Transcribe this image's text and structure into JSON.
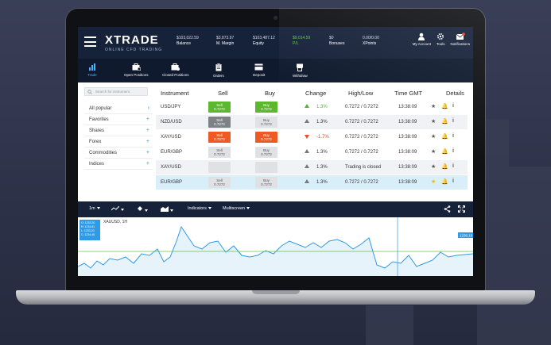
{
  "brand": {
    "name": "XTRADE",
    "tagline": "ONLINE CFD TRADING"
  },
  "header_stats": [
    {
      "value": "$103,022.59",
      "label": "Balance",
      "color": "normal"
    },
    {
      "value": "$3,873.97",
      "label": "M. Margin",
      "color": "normal"
    },
    {
      "value": "$103,487.12",
      "label": "Equity",
      "color": "normal"
    },
    {
      "value": "$9,014.59",
      "label": "P/L",
      "color": "green"
    },
    {
      "value": "$0",
      "label": "Bonuses",
      "color": "normal"
    },
    {
      "value": "0.00/0.00",
      "label": "XPoints",
      "color": "normal"
    }
  ],
  "header_icons": [
    {
      "label": "My Account",
      "icon": "user-icon"
    },
    {
      "label": "Tools",
      "icon": "gear-icon"
    },
    {
      "label": "Notifications",
      "icon": "envelope-icon"
    }
  ],
  "tabs": [
    {
      "label": "Trade",
      "icon": "bar-chart-icon",
      "active": true
    },
    {
      "label": "Open Positions",
      "icon": "briefcase-icon",
      "active": false
    },
    {
      "label": "Closed Positions",
      "icon": "briefcase-closed-icon",
      "active": false
    },
    {
      "label": "Orders",
      "icon": "clipboard-icon",
      "active": false
    },
    {
      "label": "Deposit",
      "icon": "card-icon",
      "active": false
    },
    {
      "label": "Withdraw",
      "icon": "withdraw-icon",
      "active": false
    }
  ],
  "sidebar": {
    "search_placeholder": "Search for instrument",
    "items": [
      {
        "label": "All popular",
        "active": true
      },
      {
        "label": "Favorites",
        "active": false
      },
      {
        "label": "Shares",
        "active": false
      },
      {
        "label": "Forex",
        "active": false
      },
      {
        "label": "Commodities",
        "active": false
      },
      {
        "label": "Indices",
        "active": false
      }
    ]
  },
  "table": {
    "headers": [
      "Instrument",
      "Sell",
      "Buy",
      "Change",
      "High/Low",
      "Time GMT",
      "Details"
    ],
    "rows": [
      {
        "instrument": "USD/JPY",
        "sell_label": "Sell",
        "sell": "0.7272",
        "sell_style": "green",
        "buy_label": "Buy",
        "buy": "0.7272",
        "buy_style": "green",
        "change": "1.3%",
        "trend": "up-green",
        "highlow": "0.7272 / 0.7272",
        "time": "13:38:09",
        "star": "grey",
        "bell": "grey",
        "row_style": "normal"
      },
      {
        "instrument": "NZD/USD",
        "sell_label": "Sell",
        "sell": "0.7272",
        "sell_style": "dark",
        "buy_label": "Buy",
        "buy": "0.7272",
        "buy_style": "grey",
        "change": "1.3%",
        "trend": "up",
        "highlow": "0.7272 / 0.7272",
        "time": "13:38:09",
        "star": "grey",
        "bell": "grey",
        "row_style": "alt"
      },
      {
        "instrument": "XAY/USD",
        "sell_label": "Sell",
        "sell": "0.7272",
        "sell_style": "red",
        "buy_label": "Buy",
        "buy": "0.7272",
        "buy_style": "red",
        "change": "-1.7%",
        "trend": "down",
        "highlow": "0.7272 / 0.7272",
        "time": "13:38:09",
        "star": "grey",
        "bell": "grey",
        "row_style": "normal"
      },
      {
        "instrument": "EUR/GBP",
        "sell_label": "Sell",
        "sell": "0.7272",
        "sell_style": "grey",
        "buy_label": "Buy",
        "buy": "0.7272",
        "buy_style": "grey",
        "change": "1.3%",
        "trend": "up",
        "highlow": "0.7272 / 0.7272",
        "time": "13:38:09",
        "star": "grey",
        "bell": "gold",
        "row_style": "normal"
      },
      {
        "instrument": "XAY/USD",
        "sell_label": "",
        "sell": "",
        "sell_style": "grey",
        "buy_label": "",
        "buy": "",
        "buy_style": "grey",
        "change": "1.3%",
        "trend": "up",
        "highlow": "Trading is closed",
        "time": "13:38:09",
        "star": "grey",
        "bell": "grey",
        "row_style": "alt"
      },
      {
        "instrument": "EUR/GBP",
        "sell_label": "Sell",
        "sell": "0.7272",
        "sell_style": "grey",
        "buy_label": "Buy",
        "buy": "0.7272",
        "buy_style": "grey",
        "change": "1.3%",
        "trend": "up",
        "highlow": "0.7272 / 0.7272",
        "time": "13:38:09",
        "star": "gold",
        "bell": "grey",
        "row_style": "sel"
      }
    ]
  },
  "chart_toolbar": {
    "timeframe": "1m",
    "indicators_label": "Indicators",
    "multiscreen_label": "Multiscreen"
  },
  "chart": {
    "title": "XAUUSD, 1H",
    "ohlc": [
      "O: 1233.20",
      "H: 1234.81",
      "L: 1233.20",
      "C: 1234.46"
    ],
    "price_marker": "1236.10"
  },
  "colors": {
    "header_bg": "#16223a",
    "accent_blue": "#2d9be8",
    "sell_green": "#5cb82c",
    "sell_red": "#ef5a24"
  }
}
